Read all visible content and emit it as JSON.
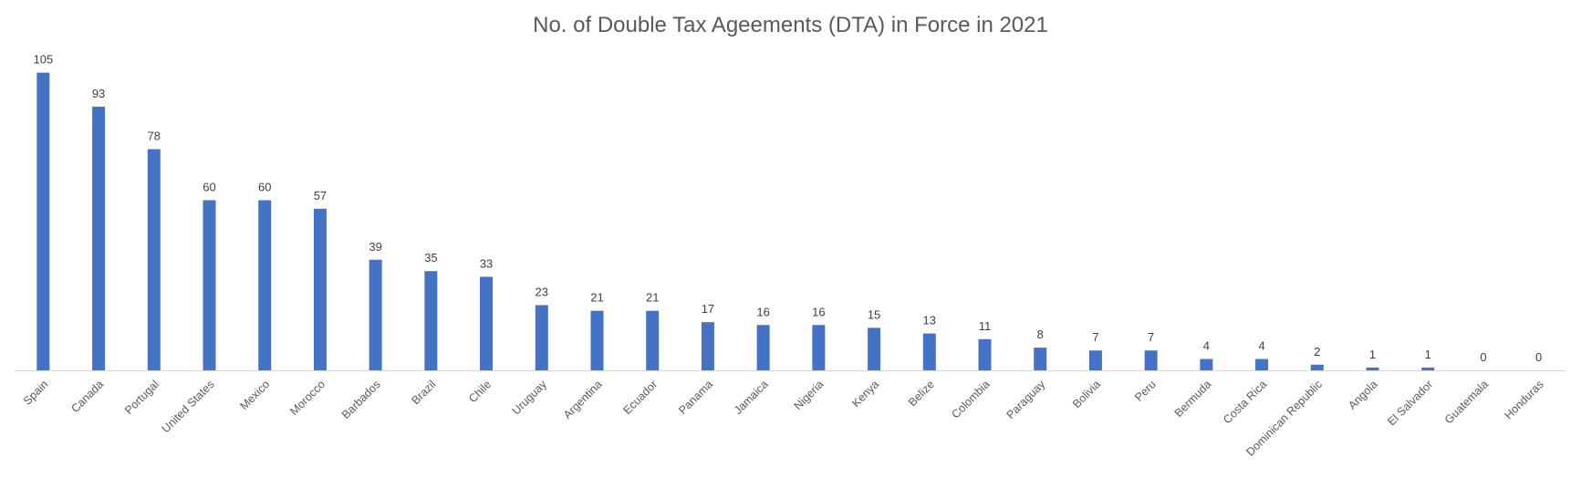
{
  "chart_data": {
    "type": "bar",
    "title": "No. of Double Tax Ageements (DTA) in Force in 2021",
    "xlabel": "",
    "ylabel": "",
    "categories": [
      "Spain",
      "Canada",
      "Portugal",
      "United States",
      "Mexico",
      "Morocco",
      "Barbados",
      "Brazil",
      "Chile",
      "Uruguay",
      "Argentina",
      "Ecuador",
      "Panama",
      "Jamaica",
      "Nigeria",
      "Kenya",
      "Belize",
      "Colombia",
      "Paraguay",
      "Bolivia",
      "Peru",
      "Bermuda",
      "Costa Rica",
      "Dominican Republic",
      "Angola",
      "El Salvador",
      "Guatemala",
      "Honduras"
    ],
    "series": [
      {
        "values": [
          105,
          93,
          78,
          60,
          60,
          57,
          39,
          35,
          33,
          23,
          21,
          21,
          17,
          16,
          16,
          15,
          13,
          11,
          8,
          7,
          7,
          4,
          4,
          2,
          1,
          1,
          0,
          0
        ]
      }
    ],
    "ylim": [
      0,
      120
    ],
    "grid": false,
    "legend": "none",
    "bar_color": "#4472C4",
    "axis_color": "#D9D9D9"
  }
}
